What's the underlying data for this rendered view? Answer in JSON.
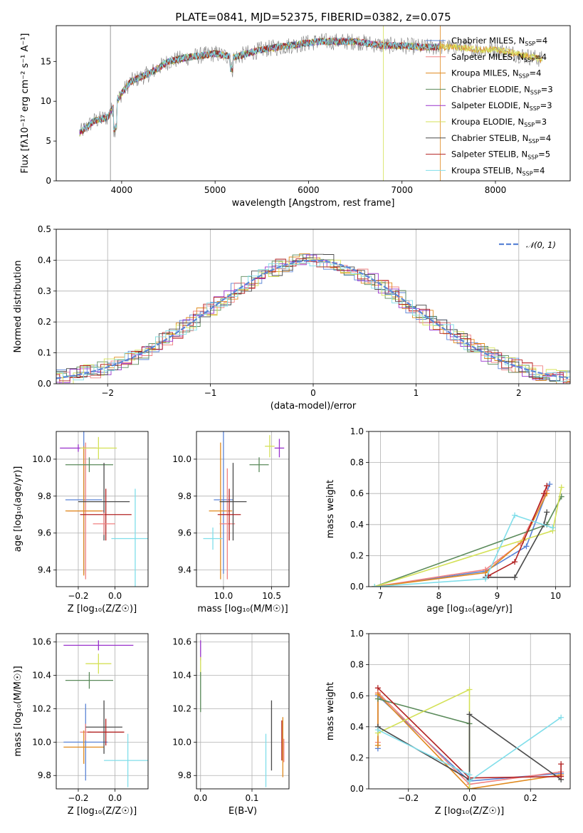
{
  "figure": {
    "title": "PLATE=0841, MJD=52375, FIBERID=0382, z=0.075"
  },
  "chart_data": [
    {
      "id": "spectrum",
      "type": "line",
      "xlabel": "wavelength [Angstrom, rest frame]",
      "ylabel": "Flux [fλ10⁻¹⁷ erg cm⁻² s⁻¹ A⁻¹]",
      "xlim": [
        3300,
        8800
      ],
      "ylim": [
        0,
        19.5
      ],
      "xticks": [
        4000,
        5000,
        6000,
        7000,
        8000
      ],
      "yticks": [
        0,
        5,
        10,
        15
      ],
      "grid": false,
      "legend_position": "right",
      "legend": [
        {
          "label": "Chabrier MILES, N",
          "sub": "SSP",
          "val": "=4",
          "color": "#5b84d6"
        },
        {
          "label": "Salpeter MILES, N",
          "sub": "SSP",
          "val": "=4",
          "color": "#f08080"
        },
        {
          "label": "Kroupa MILES, N",
          "sub": "SSP",
          "val": "=4",
          "color": "#e08a1e"
        },
        {
          "label": "Chabrier ELODIE, N",
          "sub": "SSP",
          "val": "=3",
          "color": "#5a8a5a"
        },
        {
          "label": "Salpeter ELODIE, N",
          "sub": "SSP",
          "val": "=3",
          "color": "#9932cc"
        },
        {
          "label": "Kroupa ELODIE, N",
          "sub": "SSP",
          "val": "=3",
          "color": "#d4e157"
        },
        {
          "label": "Chabrier STELIB, N",
          "sub": "SSP",
          "val": "=4",
          "color": "#4a4a4a"
        },
        {
          "label": "Salpeter STELIB, N",
          "sub": "SSP",
          "val": "=5",
          "color": "#b22222"
        },
        {
          "label": "Kroupa STELIB, N",
          "sub": "SSP",
          "val": "=4",
          "color": "#80deea"
        }
      ],
      "continuum": {
        "x": [
          3550,
          3700,
          3850,
          4000,
          4100,
          4300,
          4500,
          4700,
          5000,
          5200,
          5500,
          5800,
          6100,
          6500,
          6800,
          7000,
          7200,
          7400,
          7600,
          7800,
          8000,
          8200,
          8400,
          8600
        ],
        "y": [
          6.0,
          7.5,
          8.0,
          11.0,
          12.5,
          13.5,
          15.0,
          15.5,
          16.0,
          15.5,
          16.5,
          17.0,
          17.5,
          17.5,
          17.0,
          17.0,
          16.8,
          16.8,
          16.8,
          16.5,
          16.5,
          16.0,
          15.5,
          15.0
        ]
      }
    },
    {
      "id": "residuals",
      "type": "step",
      "xlabel": "(data-model)/error",
      "ylabel": "Normed distribution",
      "xlim": [
        -2.5,
        2.5
      ],
      "ylim": [
        0,
        0.5
      ],
      "xticks": [
        -2,
        -1,
        0,
        1,
        2
      ],
      "yticks": [
        0.0,
        0.1,
        0.2,
        0.3,
        0.4,
        0.5
      ],
      "grid": true,
      "legend_position": "top-right",
      "gaussian_label": "𝒩(0, 1)",
      "gaussian_color": "#5b84d6",
      "bin_width": 0.1,
      "noise_amplitude": 0.025
    },
    {
      "id": "age-vs-Z",
      "type": "errorbar",
      "xlabel": "Z [log₁₀(Z/Z☉)]",
      "ylabel": "age  [log₁₀(age/yr)]",
      "xlim": [
        -0.32,
        0.18
      ],
      "ylim": [
        9.31,
        10.15
      ],
      "xticks": [
        -0.2,
        0.0
      ],
      "yticks": [
        9.4,
        9.6,
        9.8,
        10.0
      ],
      "grid": true,
      "points": [
        {
          "x": -0.17,
          "xerr": 0.1,
          "y": 9.78,
          "yerr": 0.4,
          "color": "#5b84d6"
        },
        {
          "x": -0.16,
          "xerr": 0.1,
          "y": 9.72,
          "yerr": 0.37,
          "color": "#f08080"
        },
        {
          "x": -0.17,
          "xerr": 0.1,
          "y": 9.72,
          "yerr": 0.35,
          "color": "#e08a1e"
        },
        {
          "x": -0.14,
          "xerr": 0.13,
          "y": 9.97,
          "yerr": 0.04,
          "color": "#5a8a5a"
        },
        {
          "x": -0.2,
          "xerr": 0.1,
          "y": 10.06,
          "yerr": 0.02,
          "color": "#9932cc"
        },
        {
          "x": -0.09,
          "xerr": 0.1,
          "y": 10.06,
          "yerr": 0.06,
          "color": "#d4e157"
        },
        {
          "x": -0.06,
          "xerr": 0.14,
          "y": 9.77,
          "yerr": 0.21,
          "color": "#4a4a4a"
        },
        {
          "x": -0.05,
          "xerr": 0.14,
          "y": 9.7,
          "yerr": 0.14,
          "color": "#b22222"
        },
        {
          "x": 0.11,
          "xerr": 0.13,
          "y": 9.57,
          "yerr": 0.27,
          "color": "#80deea"
        },
        {
          "x": -0.06,
          "xerr": 0.06,
          "y": 9.65,
          "yerr": 0.06,
          "color": "#f08080"
        }
      ]
    },
    {
      "id": "age-vs-mass",
      "type": "errorbar",
      "xlabel": "mass [log₁₀(M/M☉)]",
      "ylabel": "",
      "xlim": [
        9.72,
        10.68
      ],
      "ylim": [
        9.31,
        10.15
      ],
      "xticks": [
        10.0,
        10.5
      ],
      "yticks": [
        9.4,
        9.6,
        9.8,
        10.0
      ],
      "grid": true,
      "points": [
        {
          "x": 10.0,
          "xerr": 0.1,
          "y": 9.78,
          "yerr": 0.4,
          "color": "#5b84d6"
        },
        {
          "x": 9.97,
          "xerr": 0.12,
          "y": 9.72,
          "yerr": 0.37,
          "color": "#e08a1e"
        },
        {
          "x": 10.04,
          "xerr": 0.08,
          "y": 9.65,
          "yerr": 0.3,
          "color": "#f08080"
        },
        {
          "x": 10.37,
          "xerr": 0.1,
          "y": 9.97,
          "yerr": 0.04,
          "color": "#5a8a5a"
        },
        {
          "x": 10.58,
          "xerr": 0.05,
          "y": 10.06,
          "yerr": 0.05,
          "color": "#9932cc"
        },
        {
          "x": 10.48,
          "xerr": 0.05,
          "y": 10.07,
          "yerr": 0.06,
          "color": "#d4e157"
        },
        {
          "x": 10.1,
          "xerr": 0.14,
          "y": 9.77,
          "yerr": 0.21,
          "color": "#4a4a4a"
        },
        {
          "x": 10.06,
          "xerr": 0.12,
          "y": 9.7,
          "yerr": 0.14,
          "color": "#b22222"
        },
        {
          "x": 9.89,
          "xerr": 0.1,
          "y": 9.57,
          "yerr": 0.06,
          "color": "#80deea"
        }
      ]
    },
    {
      "id": "massweight-vs-age",
      "type": "line",
      "xlabel": "age  [log₁₀(age/yr)]",
      "ylabel": "mass weight",
      "xlim": [
        6.8,
        10.25
      ],
      "ylim": [
        0,
        1
      ],
      "xticks": [
        7,
        8,
        9,
        10
      ],
      "yticks": [
        0.0,
        0.2,
        0.4,
        0.6,
        0.8,
        1.0
      ],
      "grid": true,
      "series": [
        {
          "color": "#5b84d6",
          "x": [
            6.9,
            8.8,
            9.5,
            9.9
          ],
          "y": [
            0.0,
            0.1,
            0.26,
            0.66
          ]
        },
        {
          "color": "#f08080",
          "x": [
            6.9,
            8.8,
            9.4,
            9.85
          ],
          "y": [
            0.0,
            0.11,
            0.28,
            0.62
          ]
        },
        {
          "color": "#e08a1e",
          "x": [
            6.9,
            8.8,
            9.45,
            9.85
          ],
          "y": [
            0.0,
            0.09,
            0.3,
            0.6
          ]
        },
        {
          "color": "#5a8a5a",
          "x": [
            6.9,
            9.85,
            10.1
          ],
          "y": [
            0.0,
            0.4,
            0.58
          ]
        },
        {
          "color": "#d4e157",
          "x": [
            6.9,
            9.95,
            10.1
          ],
          "y": [
            0.0,
            0.36,
            0.64
          ]
        },
        {
          "color": "#4a4a4a",
          "x": [
            8.8,
            9.3,
            9.8,
            9.85
          ],
          "y": [
            0.06,
            0.06,
            0.4,
            0.48
          ]
        },
        {
          "color": "#b22222",
          "x": [
            8.85,
            9.3,
            9.8,
            9.85
          ],
          "y": [
            0.07,
            0.16,
            0.6,
            0.65
          ]
        },
        {
          "color": "#80deea",
          "x": [
            6.9,
            8.8,
            9.3,
            9.95
          ],
          "y": [
            0.0,
            0.05,
            0.46,
            0.38
          ]
        }
      ]
    },
    {
      "id": "mass-vs-Z",
      "type": "errorbar",
      "xlabel": "Z [log₁₀(Z/Z☉)]",
      "ylabel": "mass [log₁₀(M/M☉)]",
      "xlim": [
        -0.32,
        0.18
      ],
      "ylim": [
        9.72,
        10.65
      ],
      "xticks": [
        -0.2,
        0.0
      ],
      "yticks": [
        9.8,
        10.0,
        10.2,
        10.4,
        10.6
      ],
      "grid": true,
      "points": [
        {
          "x": -0.16,
          "xerr": 0.12,
          "y": 10.0,
          "yerr": 0.23,
          "color": "#5b84d6"
        },
        {
          "x": -0.16,
          "xerr": 0.03,
          "y": 10.06,
          "yerr": 0.05,
          "color": "#f08080"
        },
        {
          "x": -0.17,
          "xerr": 0.11,
          "y": 9.97,
          "yerr": 0.1,
          "color": "#e08a1e"
        },
        {
          "x": -0.14,
          "xerr": 0.13,
          "y": 10.37,
          "yerr": 0.05,
          "color": "#5a8a5a"
        },
        {
          "x": -0.09,
          "xerr": 0.19,
          "y": 10.58,
          "yerr": 0.03,
          "color": "#9932cc"
        },
        {
          "x": -0.09,
          "xerr": 0.07,
          "y": 10.47,
          "yerr": 0.06,
          "color": "#d4e157"
        },
        {
          "x": -0.06,
          "xerr": 0.1,
          "y": 10.09,
          "yerr": 0.16,
          "color": "#4a4a4a"
        },
        {
          "x": -0.05,
          "xerr": 0.1,
          "y": 10.06,
          "yerr": 0.08,
          "color": "#b22222"
        },
        {
          "x": 0.07,
          "xerr": 0.13,
          "y": 9.89,
          "yerr": 0.16,
          "color": "#80deea"
        }
      ]
    },
    {
      "id": "mass-vs-EBV",
      "type": "errorbar",
      "xlabel": "E(B-V)",
      "ylabel": "",
      "xlim": [
        -0.008,
        0.172
      ],
      "ylim": [
        9.72,
        10.65
      ],
      "xticks": [
        0.0,
        0.1
      ],
      "yticks": [
        9.8,
        10.0,
        10.2,
        10.4,
        10.6
      ],
      "grid": true,
      "points": [
        {
          "x": 0.0,
          "xerr": 0,
          "y": 10.55,
          "yerr": 0.06,
          "color": "#9932cc"
        },
        {
          "x": 0.0,
          "xerr": 0,
          "y": 10.45,
          "yerr": 0.06,
          "color": "#d4e157"
        },
        {
          "x": 0.0,
          "xerr": 0,
          "y": 10.3,
          "yerr": 0.12,
          "color": "#5a8a5a"
        },
        {
          "x": 0.127,
          "xerr": 0,
          "y": 9.89,
          "yerr": 0.16,
          "color": "#80deea"
        },
        {
          "x": 0.138,
          "xerr": 0,
          "y": 10.04,
          "yerr": 0.21,
          "color": "#4a4a4a"
        },
        {
          "x": 0.158,
          "xerr": 0,
          "y": 10.01,
          "yerr": 0.12,
          "color": "#b22222"
        },
        {
          "x": 0.16,
          "xerr": 0,
          "y": 9.97,
          "yerr": 0.18,
          "color": "#e08a1e"
        },
        {
          "x": 0.162,
          "xerr": 0,
          "y": 9.95,
          "yerr": 0.07,
          "color": "#f08080"
        }
      ]
    },
    {
      "id": "massweight-vs-Z",
      "type": "line",
      "xlabel": "Z [log₁₀(Z/Z☉)]",
      "ylabel": "mass weight",
      "xlim": [
        -0.33,
        0.33
      ],
      "ylim": [
        0,
        1
      ],
      "xticks": [
        -0.2,
        0.0,
        0.2
      ],
      "yticks": [
        0.0,
        0.2,
        0.4,
        0.6,
        0.8,
        1.0
      ],
      "grid": true,
      "series": [
        {
          "color": "#5b84d6",
          "x": [
            -0.3,
            -0.3,
            0.0,
            0.3
          ],
          "y": [
            0.26,
            0.6,
            0.05,
            0.1
          ]
        },
        {
          "color": "#f08080",
          "x": [
            -0.3,
            -0.3,
            0.0,
            0.3
          ],
          "y": [
            0.3,
            0.62,
            0.03,
            0.11
          ]
        },
        {
          "color": "#e08a1e",
          "x": [
            -0.3,
            -0.3,
            0.0,
            0.3
          ],
          "y": [
            0.28,
            0.61,
            0.0,
            0.09
          ]
        },
        {
          "color": "#5a8a5a",
          "x": [
            -0.3,
            0.0,
            0.0
          ],
          "y": [
            0.58,
            0.42,
            0.0
          ]
        },
        {
          "color": "#d4e157",
          "x": [
            -0.3,
            0.0,
            0.0
          ],
          "y": [
            0.36,
            0.64,
            0.0
          ]
        },
        {
          "color": "#4a4a4a",
          "x": [
            -0.3,
            0.0,
            0.0,
            0.3
          ],
          "y": [
            0.4,
            0.06,
            0.48,
            0.06
          ]
        },
        {
          "color": "#b22222",
          "x": [
            -0.3,
            0.0,
            0.3,
            0.3
          ],
          "y": [
            0.65,
            0.07,
            0.08,
            0.16
          ]
        },
        {
          "color": "#80deea",
          "x": [
            -0.3,
            0.0,
            0.0,
            0.3
          ],
          "y": [
            0.38,
            0.09,
            0.05,
            0.46
          ]
        }
      ]
    }
  ]
}
